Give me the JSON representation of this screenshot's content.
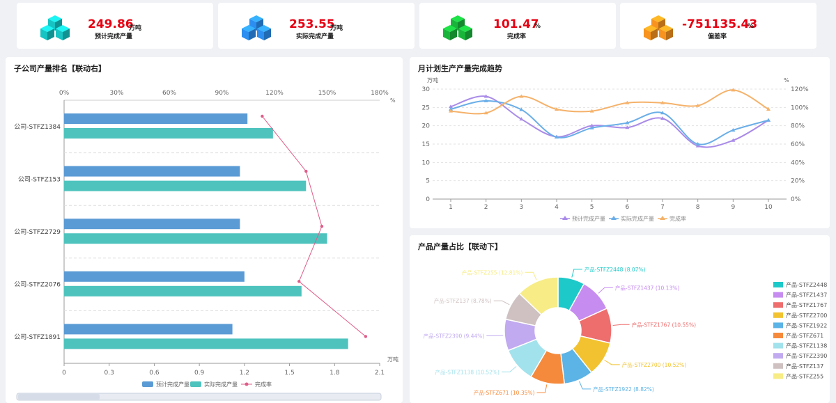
{
  "kpis": [
    {
      "value": "249.86",
      "unit": "万吨",
      "label": "预计完成产量",
      "color": "#17c3c3"
    },
    {
      "value": "253.55",
      "unit": "万吨",
      "label": "实际完成产量",
      "color": "#2b8ef0"
    },
    {
      "value": "101.47",
      "unit": "%",
      "label": "完成率",
      "color": "#19b53a"
    },
    {
      "value": "-751135.43",
      "unit": "%",
      "label": "偏差率",
      "color": "#f7931e"
    }
  ],
  "panels": {
    "ranking_title": "子公司产量排名【联动右】",
    "trend_title": "月计划生产产量完成趋势",
    "pie_title": "产品产量占比【联动下】"
  },
  "chart_data": [
    {
      "type": "bar",
      "title": "子公司产量排名【联动右】",
      "orientation": "horizontal",
      "categories": [
        "公司-STFZ1384",
        "公司-STFZ153",
        "公司-STFZ2729",
        "公司-STFZ2076",
        "公司-STFZ1891"
      ],
      "series": [
        {
          "name": "预计完成产量",
          "color": "#5b9bd5",
          "values": [
            1.22,
            1.17,
            1.17,
            1.2,
            1.12
          ]
        },
        {
          "name": "实际完成产量",
          "color": "#4ec3be",
          "values": [
            1.39,
            1.61,
            1.75,
            1.58,
            1.89
          ]
        },
        {
          "name": "完成率",
          "color": "#e05c89",
          "kind": "line",
          "values": [
            113,
            138,
            147,
            134,
            172
          ]
        }
      ],
      "xlim": [
        0,
        2.1
      ],
      "x_ticks": [
        "0",
        "0.3",
        "0.6",
        "0.9",
        "1.2",
        "1.5",
        "1.8",
        "2.1"
      ],
      "xlabel": "万吨",
      "x2lim": [
        0,
        180
      ],
      "x2_ticks": [
        "0%",
        "30%",
        "60%",
        "90%",
        "120%",
        "150%",
        "180%"
      ],
      "x2label": "%"
    },
    {
      "type": "line",
      "title": "月计划生产产量完成趋势",
      "x": [
        1,
        2,
        3,
        4,
        5,
        6,
        7,
        8,
        9,
        10
      ],
      "series": [
        {
          "name": "预计完成产量",
          "color": "#a98be8",
          "values": [
            25.2,
            28.0,
            21.8,
            17.0,
            20.0,
            19.5,
            22.0,
            14.5,
            16.0,
            21.5
          ],
          "axis": "left"
        },
        {
          "name": "实际完成产量",
          "color": "#6aaee8",
          "values": [
            24.5,
            26.8,
            24.4,
            16.9,
            19.4,
            20.8,
            23.5,
            15.0,
            18.8,
            21.5
          ],
          "axis": "left"
        },
        {
          "name": "完成率",
          "color": "#f5b26b",
          "values": [
            96,
            94,
            112,
            98,
            96,
            105,
            105,
            102,
            119,
            98
          ],
          "axis": "right"
        }
      ],
      "ylabel": "万吨",
      "ylim": [
        0,
        30
      ],
      "y_ticks": [
        "0",
        "5",
        "10",
        "15",
        "20",
        "25",
        "30"
      ],
      "y2label": "%",
      "y2lim": [
        0,
        120
      ],
      "y2_ticks": [
        "0%",
        "20%",
        "40%",
        "60%",
        "80%",
        "100%",
        "120%"
      ]
    },
    {
      "type": "pie",
      "title": "产品产量占比【联动下】",
      "slices": [
        {
          "name": "产品-STFZ2448",
          "label": "产品-STFZ2448 (8.07%)",
          "value": 8.07,
          "color": "#1ec9c9"
        },
        {
          "name": "产品-STFZ1437",
          "label": "产品-STFZ1437 (10.13%)",
          "value": 10.13,
          "color": "#c78cf0"
        },
        {
          "name": "产品-STFZ1767",
          "label": "产品-STFZ1767 (10.55%)",
          "value": 10.55,
          "color": "#ee6e6e"
        },
        {
          "name": "产品-STFZ2700",
          "label": "产品-STFZ2700 (10.52%)",
          "value": 10.52,
          "color": "#f2c230"
        },
        {
          "name": "产品-STFZ1922",
          "label": "产品-STFZ1922 (8.82%)",
          "value": 8.82,
          "color": "#5cb3e6"
        },
        {
          "name": "产品-STFZ671",
          "label": "产品-STFZ671 (10.35%)",
          "value": 10.35,
          "color": "#f58a3c"
        },
        {
          "name": "产品-STFZ1138",
          "label": "产品-STFZ1138 (10.52%)",
          "value": 10.52,
          "color": "#a2e2ec"
        },
        {
          "name": "产品-STFZ2390",
          "label": "产品-STFZ2390 (9.44%)",
          "value": 9.44,
          "color": "#c1aaf0"
        },
        {
          "name": "产品-STFZ137",
          "label": "产品-STFZ137 (8.78%)",
          "value": 8.78,
          "color": "#cfc1c1"
        },
        {
          "name": "产品-STFZ255",
          "label": "产品-STFZ255 (12.81%)",
          "value": 12.81,
          "color": "#f7ec86"
        }
      ]
    }
  ]
}
